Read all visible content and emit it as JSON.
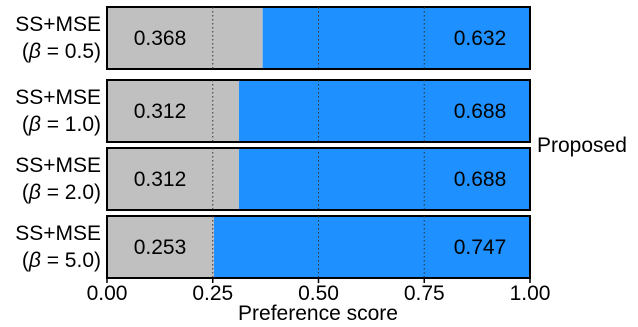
{
  "chart_data": {
    "type": "bar",
    "orientation": "horizontal",
    "stacked": true,
    "categories": [
      {
        "line1": "SS+MSE",
        "beta_symbol": "β",
        "line2_rest": " = 0.5)"
      },
      {
        "line1": "SS+MSE",
        "beta_symbol": "β",
        "line2_rest": " = 1.0)"
      },
      {
        "line1": "SS+MSE",
        "beta_symbol": "β",
        "line2_rest": " = 2.0)"
      },
      {
        "line1": "SS+MSE",
        "beta_symbol": "β",
        "line2_rest": " = 5.0)"
      }
    ],
    "series": [
      {
        "color": "#c0c0c0",
        "values": [
          0.368,
          0.312,
          0.312,
          0.253
        ],
        "labels": [
          "0.368",
          "0.312",
          "0.312",
          "0.253"
        ]
      },
      {
        "color": "#1e90ff",
        "values": [
          0.632,
          0.688,
          0.688,
          0.747
        ],
        "labels": [
          "0.632",
          "0.688",
          "0.688",
          "0.747"
        ]
      }
    ],
    "right_label": "Proposed",
    "xlabel": "Preference score",
    "xlim": [
      0,
      1
    ],
    "xticks": [
      0,
      0.25,
      0.5,
      0.75,
      1.0
    ],
    "xtick_labels": [
      "0.00",
      "0.25",
      "0.50",
      "0.75",
      "1.00"
    ],
    "vertical_gridlines": {
      "at": [
        0.25,
        0.5,
        0.75
      ],
      "style": "dotted"
    }
  }
}
